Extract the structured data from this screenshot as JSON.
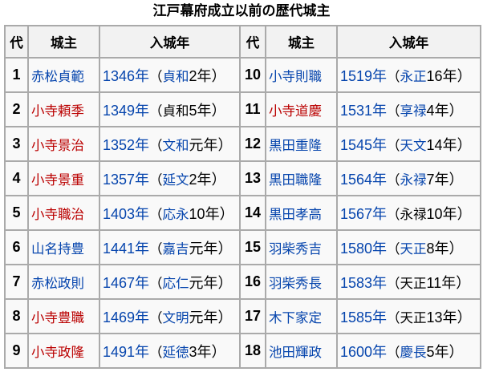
{
  "title": "江戸幕府成立以前の歴代城主",
  "headers": [
    "代",
    "城主",
    "入城年",
    "代",
    "城主",
    "入城年"
  ],
  "colors": {
    "link": "#0645ad",
    "redlink": "#ba0000",
    "border": "#aaa",
    "header_bg": "#f2f2f2",
    "cell_bg": "#f9f9f9"
  },
  "rows": [
    {
      "gen": "1",
      "name": "赤松貞範",
      "name_link": "blue",
      "year": "1346年",
      "open": "（",
      "era": "貞和",
      "era_link": true,
      "rest": "2年）"
    },
    {
      "gen": "2",
      "name": "小寺頼季",
      "name_link": "red",
      "year": "1349年",
      "open": "（",
      "era": "貞和",
      "era_link": false,
      "rest": "5年）"
    },
    {
      "gen": "3",
      "name": "小寺景治",
      "name_link": "red",
      "year": "1352年",
      "open": "（",
      "era": "文和",
      "era_link": true,
      "rest": "元年）"
    },
    {
      "gen": "4",
      "name": "小寺景重",
      "name_link": "red",
      "year": "1357年",
      "open": "（",
      "era": "延文",
      "era_link": true,
      "rest": "2年）"
    },
    {
      "gen": "5",
      "name": "小寺職治",
      "name_link": "red",
      "year": "1403年",
      "open": "（",
      "era": "応永",
      "era_link": true,
      "rest": "10年）"
    },
    {
      "gen": "6",
      "name": "山名持豊",
      "name_link": "blue",
      "year": "1441年",
      "open": "（",
      "era": "嘉吉",
      "era_link": true,
      "rest": "元年）"
    },
    {
      "gen": "7",
      "name": "赤松政則",
      "name_link": "blue",
      "year": "1467年",
      "open": "（",
      "era": "応仁",
      "era_link": true,
      "rest": "元年）"
    },
    {
      "gen": "8",
      "name": "小寺豊職",
      "name_link": "red",
      "year": "1469年",
      "open": "（",
      "era": "文明",
      "era_link": true,
      "rest": "元年）"
    },
    {
      "gen": "9",
      "name": "小寺政隆",
      "name_link": "red",
      "year": "1491年",
      "open": "（",
      "era": "延徳",
      "era_link": true,
      "rest": "3年）"
    },
    {
      "gen": "10",
      "name": "小寺則職",
      "name_link": "blue",
      "year": "1519年",
      "open": "（",
      "era": "永正",
      "era_link": true,
      "rest": "16年）"
    },
    {
      "gen": "11",
      "name": "小寺道慶",
      "name_link": "red",
      "year": "1531年",
      "open": "（",
      "era": "享禄",
      "era_link": true,
      "rest": "4年）"
    },
    {
      "gen": "12",
      "name": "黒田重隆",
      "name_link": "blue",
      "year": "1545年",
      "open": "（",
      "era": "天文",
      "era_link": true,
      "rest": "14年）"
    },
    {
      "gen": "13",
      "name": "黒田職隆",
      "name_link": "blue",
      "year": "1564年",
      "open": "（",
      "era": "永禄",
      "era_link": true,
      "rest": "7年）"
    },
    {
      "gen": "14",
      "name": "黒田孝高",
      "name_link": "blue",
      "year": "1567年",
      "open": "（",
      "era": "永禄",
      "era_link": false,
      "rest": "10年）"
    },
    {
      "gen": "15",
      "name": "羽柴秀吉",
      "name_link": "blue",
      "year": "1580年",
      "open": "（",
      "era": "天正",
      "era_link": true,
      "rest": "8年）"
    },
    {
      "gen": "16",
      "name": "羽柴秀長",
      "name_link": "blue",
      "year": "1583年",
      "open": "（",
      "era": "天正",
      "era_link": false,
      "rest": "11年）"
    },
    {
      "gen": "17",
      "name": "木下家定",
      "name_link": "blue",
      "year": "1585年",
      "open": "（",
      "era": "天正",
      "era_link": false,
      "rest": "13年）"
    },
    {
      "gen": "18",
      "name": "池田輝政",
      "name_link": "blue",
      "year": "1600年",
      "open": "（",
      "era": "慶長",
      "era_link": true,
      "rest": "5年）"
    }
  ]
}
